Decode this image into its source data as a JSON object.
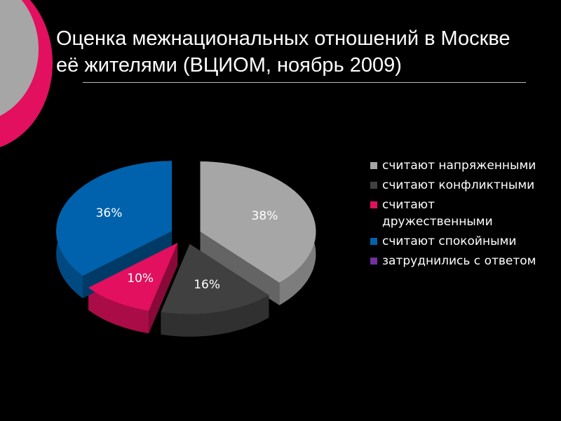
{
  "chart_data": {
    "type": "pie3d",
    "title": "Оценка межнациональных отношений в Москве её жителями (ВЦИОМ, ноябрь 2009)",
    "series": [
      {
        "name": "считают напряженными",
        "color": "#a6a6a6",
        "values": [
          38
        ],
        "value_labels": [
          "38%"
        ]
      },
      {
        "name": "считают конфликтными",
        "color": "#404040",
        "values": [
          16
        ],
        "value_labels": [
          "16%"
        ]
      },
      {
        "name": "считают дружественными",
        "color": "#e2105e",
        "values": [
          10
        ],
        "value_labels": [
          "10%"
        ]
      },
      {
        "name": "считают спокойными",
        "color": "#0062ac",
        "values": [
          36
        ],
        "value_labels": [
          "36%"
        ]
      },
      {
        "name": "затруднились с ответом",
        "color": "#7030a0",
        "values": [
          0
        ],
        "value_labels": [
          null
        ]
      }
    ]
  }
}
